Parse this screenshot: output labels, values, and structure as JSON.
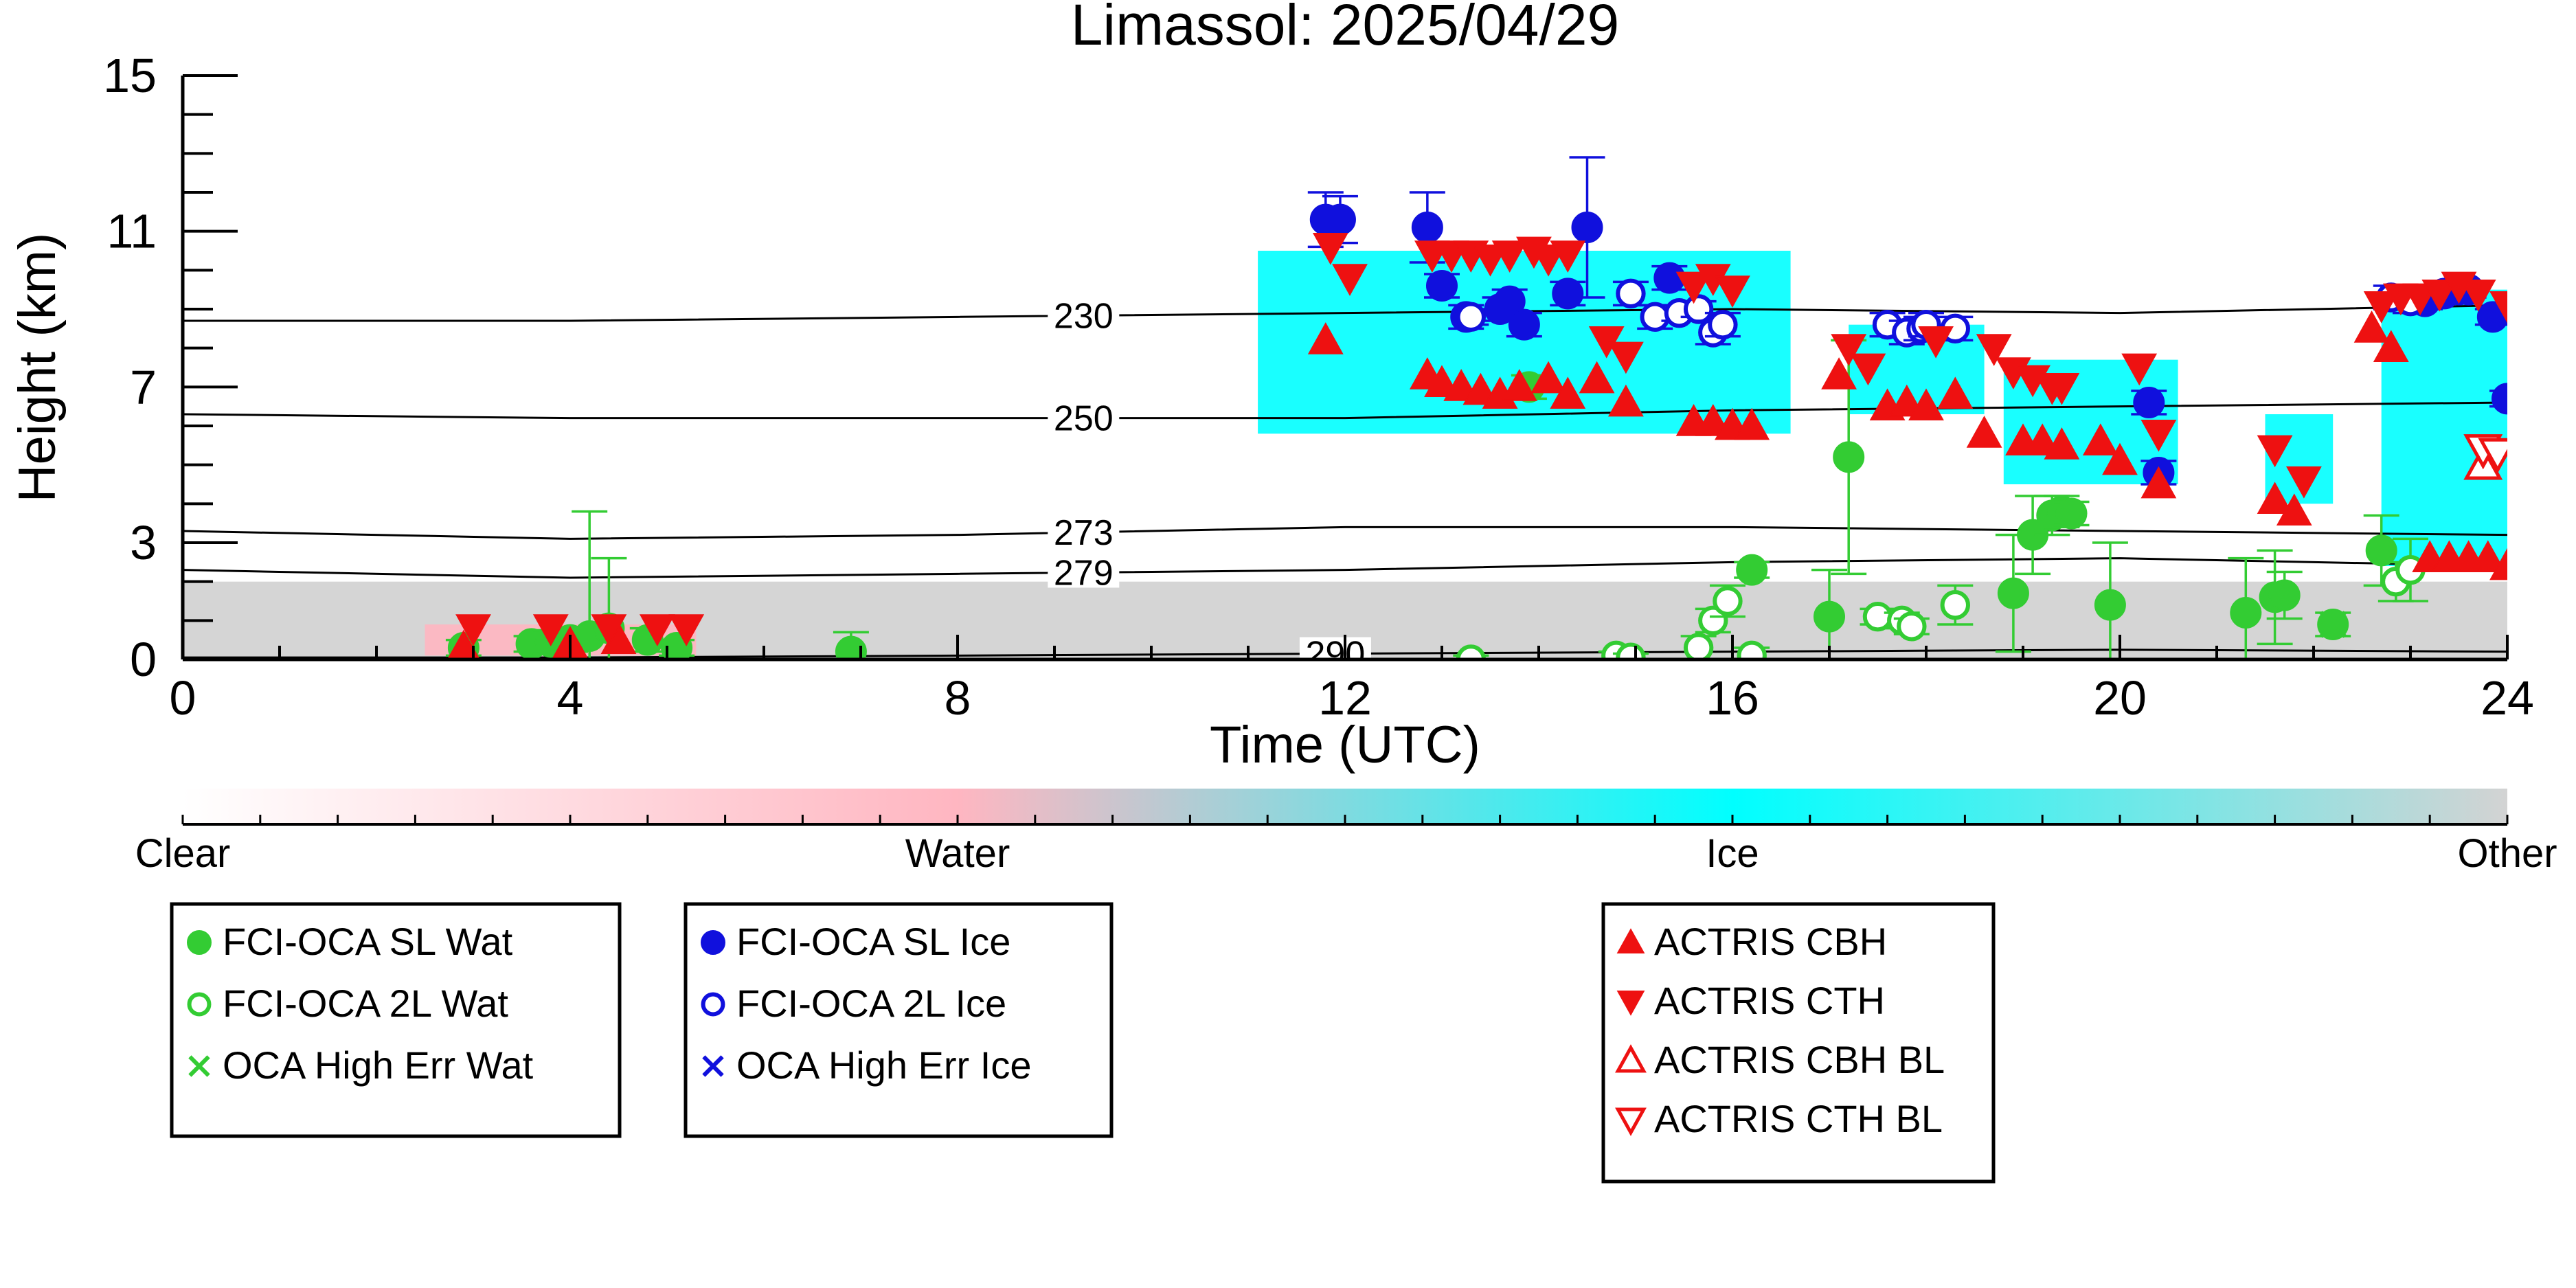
{
  "chart_data": {
    "type": "scatter",
    "title": "Limassol: 2025/04/29",
    "xlabel": "Time (UTC)",
    "ylabel": "Height (km)",
    "xlim": [
      0,
      24
    ],
    "ylim": [
      0,
      15
    ],
    "x_ticks": [
      "0",
      "4",
      "8",
      "12",
      "16",
      "20",
      "24"
    ],
    "y_ticks": [
      "0",
      "3",
      "7",
      "11",
      "15"
    ],
    "colorbar": {
      "labels": [
        "Clear",
        "Water",
        "Ice",
        "Other"
      ],
      "colors": [
        "#ffffff",
        "#ffb6c1",
        "#00ffff",
        "#d3d3d3"
      ]
    },
    "temperature_contours": [
      {
        "label": "230",
        "x": [
          0,
          4,
          8,
          12,
          16,
          20,
          24
        ],
        "y": [
          8.7,
          8.7,
          8.8,
          8.9,
          9.0,
          8.9,
          9.1
        ]
      },
      {
        "label": "250",
        "x": [
          0,
          4,
          8,
          12,
          16,
          20,
          24
        ],
        "y": [
          6.3,
          6.2,
          6.2,
          6.2,
          6.4,
          6.5,
          6.6
        ]
      },
      {
        "label": "273",
        "x": [
          0,
          4,
          8,
          12,
          16,
          20,
          24
        ],
        "y": [
          3.3,
          3.1,
          3.2,
          3.4,
          3.4,
          3.3,
          3.2
        ]
      },
      {
        "label": "279",
        "x": [
          0,
          4,
          8,
          12,
          16,
          20,
          24
        ],
        "y": [
          2.3,
          2.1,
          2.2,
          2.3,
          2.5,
          2.6,
          2.4
        ]
      },
      {
        "label": "290",
        "x": [
          0,
          4,
          8,
          12,
          16,
          20,
          24
        ],
        "y": [
          0.05,
          0.05,
          0.1,
          0.15,
          0.2,
          0.25,
          0.2
        ]
      }
    ],
    "background_regions": [
      {
        "class": "Other",
        "x": [
          0,
          24
        ],
        "y0": 0,
        "y1": 2.0
      },
      {
        "class": "Water",
        "x": [
          2.5,
          5.3
        ],
        "y0": 0.1,
        "y1": 0.9
      },
      {
        "class": "Ice",
        "x": [
          11.1,
          16.6
        ],
        "y0": 5.8,
        "y1": 10.5
      },
      {
        "class": "Ice",
        "x": [
          17.2,
          18.6
        ],
        "y0": 6.3,
        "y1": 8.6
      },
      {
        "class": "Ice",
        "x": [
          18.8,
          20.6
        ],
        "y0": 4.5,
        "y1": 7.7
      },
      {
        "class": "Ice",
        "x": [
          21.5,
          22.2
        ],
        "y0": 4.0,
        "y1": 6.3
      },
      {
        "class": "Ice",
        "x": [
          22.7,
          24.0
        ],
        "y0": 2.4,
        "y1": 9.5
      }
    ],
    "series": [
      {
        "name": "FCI-OCA SL Wat",
        "color": "#33cc33",
        "marker": "circle-filled",
        "x": [
          2.9,
          3.6,
          3.8,
          4.0,
          4.2,
          4.4,
          4.8,
          5.1,
          6.9,
          13.9,
          16.2,
          17.0,
          17.2,
          18.9,
          19.1,
          19.3,
          19.4,
          19.5,
          19.9,
          21.3,
          21.6,
          21.7,
          22.2,
          22.7
        ],
        "y": [
          0.3,
          0.4,
          0.45,
          0.5,
          0.6,
          0.8,
          0.5,
          0.3,
          0.2,
          7.0,
          2.3,
          1.1,
          5.2,
          1.7,
          3.2,
          3.7,
          3.8,
          3.75,
          1.4,
          1.2,
          1.6,
          1.65,
          0.9,
          2.8
        ],
        "yerr": [
          0.2,
          0.2,
          0.3,
          0.3,
          3.2,
          1.8,
          0.3,
          0.2,
          0.5,
          0.3,
          0.2,
          1.2,
          3.0,
          1.5,
          1.0,
          0.5,
          0.4,
          0.3,
          1.6,
          1.4,
          1.2,
          0.6,
          0.3,
          0.9
        ]
      },
      {
        "name": "FCI-OCA 2L Wat",
        "color": "#33cc33",
        "marker": "circle-open",
        "x": [
          13.3,
          14.8,
          14.95,
          15.65,
          15.8,
          15.95,
          16.2,
          17.5,
          17.75,
          17.85,
          18.3,
          22.85,
          23.0
        ],
        "y": [
          0.0,
          0.1,
          0.05,
          0.3,
          1.0,
          1.5,
          0.1,
          1.1,
          1.0,
          0.85,
          1.4,
          2.0,
          2.3
        ],
        "yerr": [
          0.1,
          0.1,
          0.1,
          0.3,
          0.3,
          0.4,
          0.2,
          0.2,
          0.2,
          0.2,
          0.5,
          0.5,
          0.8
        ]
      },
      {
        "name": "OCA High Err Wat",
        "color": "#33cc33",
        "marker": "x",
        "x": [
          22.2
        ],
        "y": [
          0.9
        ]
      },
      {
        "name": "FCI-OCA SL Ice",
        "color": "#1010dd",
        "marker": "circle-filled",
        "x": [
          11.8,
          11.95,
          12.85,
          13.0,
          13.25,
          13.6,
          13.7,
          13.85,
          14.3,
          14.5,
          15.35,
          20.3,
          20.4,
          23.15,
          23.35,
          23.5,
          23.6,
          23.85,
          24.0
        ],
        "y": [
          11.3,
          11.3,
          11.1,
          9.6,
          8.8,
          9.0,
          9.2,
          8.6,
          9.4,
          11.1,
          9.8,
          6.6,
          4.8,
          9.2,
          9.4,
          9.5,
          9.5,
          8.8,
          6.7
        ],
        "yerr": [
          0.7,
          0.6,
          0.9,
          0.3,
          0.3,
          0.3,
          0.3,
          0.3,
          0.3,
          1.8,
          0.3,
          0.3,
          0.3,
          0.2,
          0.2,
          0.2,
          0.2,
          0.2,
          0.2
        ]
      },
      {
        "name": "FCI-OCA 2L Ice",
        "color": "#1010dd",
        "marker": "circle-open",
        "x": [
          13.3,
          14.95,
          15.2,
          15.45,
          15.65,
          15.8,
          15.9,
          17.6,
          17.8,
          17.95,
          18.0,
          18.3,
          22.8,
          23.0
        ],
        "y": [
          8.8,
          9.4,
          8.8,
          8.9,
          9.0,
          8.4,
          8.6,
          8.6,
          8.4,
          8.5,
          8.6,
          8.5,
          9.3,
          9.2
        ],
        "yerr": [
          0.2,
          0.3,
          0.3,
          0.2,
          0.2,
          0.3,
          0.3,
          0.3,
          0.3,
          0.3,
          0.3,
          0.3,
          0.3,
          0.3
        ]
      },
      {
        "name": "OCA High Err Ice",
        "color": "#1010dd",
        "marker": "x",
        "x": [],
        "y": []
      },
      {
        "name": "ACTRIS CBH",
        "color": "#ee1111",
        "marker": "triangle-up-filled",
        "x": [
          2.9,
          4.0,
          4.5,
          11.8,
          12.85,
          13.0,
          13.2,
          13.4,
          13.6,
          13.8,
          14.1,
          14.3,
          14.6,
          14.9,
          15.6,
          15.8,
          16.0,
          16.2,
          17.1,
          17.6,
          17.8,
          18.0,
          18.3,
          18.6,
          19.0,
          19.2,
          19.4,
          19.8,
          20.0,
          20.4,
          21.6,
          21.8,
          22.6,
          22.8,
          23.2,
          23.4,
          23.6,
          23.8,
          24.0
        ],
        "y": [
          0.3,
          0.4,
          0.5,
          8.2,
          7.3,
          7.1,
          7.0,
          6.9,
          6.8,
          7.0,
          7.2,
          6.8,
          7.2,
          6.6,
          6.1,
          6.1,
          6.0,
          6.0,
          7.3,
          6.5,
          6.6,
          6.5,
          6.8,
          5.8,
          5.6,
          5.6,
          5.5,
          5.6,
          5.1,
          4.5,
          4.1,
          3.8,
          8.5,
          8.0,
          2.6,
          2.6,
          2.6,
          2.6,
          2.4
        ]
      },
      {
        "name": "ACTRIS CTH",
        "color": "#ee1111",
        "marker": "triangle-down-filled",
        "x": [
          3.0,
          3.8,
          4.4,
          4.9,
          5.2,
          11.85,
          12.05,
          12.9,
          13.1,
          13.3,
          13.5,
          13.7,
          13.95,
          14.1,
          14.3,
          14.7,
          14.9,
          15.6,
          15.8,
          16.0,
          17.2,
          17.4,
          18.1,
          18.7,
          18.9,
          19.1,
          19.3,
          19.4,
          20.2,
          20.4,
          21.6,
          21.9,
          22.7,
          22.9,
          23.1,
          23.3,
          23.5,
          23.7,
          24.0
        ],
        "y": [
          0.8,
          0.8,
          0.8,
          0.8,
          0.8,
          10.6,
          9.8,
          10.4,
          10.4,
          10.4,
          10.3,
          10.4,
          10.5,
          10.3,
          10.4,
          8.2,
          7.8,
          9.6,
          9.8,
          9.5,
          8.0,
          7.5,
          8.2,
          8.0,
          7.4,
          7.2,
          7.0,
          7.0,
          7.5,
          5.8,
          5.4,
          4.6,
          9.1,
          9.3,
          9.3,
          9.4,
          9.6,
          9.4,
          9.1
        ]
      },
      {
        "name": "ACTRIS CBH BL",
        "color": "#ee1111",
        "marker": "triangle-up-open",
        "x": [
          23.75
        ],
        "y": [
          5.0
        ]
      },
      {
        "name": "ACTRIS CTH BL",
        "color": "#ee1111",
        "marker": "triangle-down-open",
        "x": [
          23.75,
          23.9
        ],
        "y": [
          5.4,
          5.3
        ]
      }
    ]
  },
  "legends": [
    {
      "items": [
        "FCI-OCA SL Wat",
        "FCI-OCA 2L Wat",
        "OCA High Err Wat"
      ]
    },
    {
      "items": [
        "FCI-OCA SL Ice",
        "FCI-OCA 2L Ice",
        "OCA High Err Ice"
      ]
    },
    {
      "items": [
        "ACTRIS CBH",
        "ACTRIS CTH",
        "ACTRIS CBH BL",
        "ACTRIS CTH BL"
      ]
    }
  ]
}
